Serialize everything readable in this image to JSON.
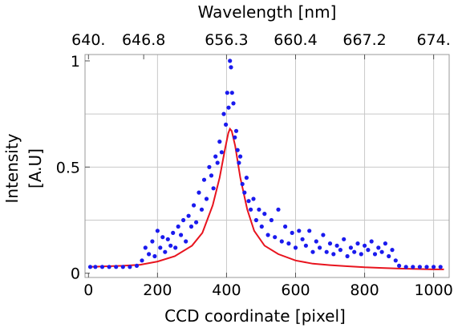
{
  "chart_data": {
    "type": "scatter",
    "xlabel": "CCD coordinate [pixel]",
    "ylabel_lines": [
      "Intensity",
      "[A.U]"
    ],
    "top_axis_title": "Wavelength [nm]",
    "xlim": [
      -10,
      1045
    ],
    "ylim": [
      -0.02,
      1.03
    ],
    "x_ticks": [
      0,
      200,
      400,
      600,
      800,
      1000
    ],
    "x_tick_labels": [
      "0",
      "200",
      "400",
      "600",
      "800",
      "1000"
    ],
    "y_ticks": [
      0,
      0.5,
      1
    ],
    "y_tick_labels": [
      "0",
      "0.5",
      "1"
    ],
    "top_ticks_x": [
      0,
      160,
      400,
      600,
      800,
      1000
    ],
    "top_tick_labels": [
      "640.",
      "646.8",
      "656.3",
      "660.4",
      "667.2",
      "674."
    ],
    "grid": true,
    "colors": {
      "points": "#1a1aee",
      "fit": "#e8141e",
      "grid": "#c8c8c8",
      "frame": "#9a9a9a"
    },
    "series": [
      {
        "kind": "points",
        "x": [
          5,
          20,
          40,
          60,
          80,
          100,
          120,
          140,
          155,
          165,
          175,
          185,
          192,
          200,
          208,
          215,
          222,
          230,
          238,
          245,
          252,
          260,
          268,
          275,
          282,
          290,
          298,
          305,
          312,
          320,
          328,
          335,
          342,
          350,
          356,
          362,
          368,
          374,
          380,
          386,
          392,
          398,
          402,
          406,
          410,
          413,
          416,
          420,
          424,
          428,
          432,
          436,
          440,
          446,
          452,
          458,
          464,
          470,
          478,
          486,
          494,
          502,
          510,
          520,
          530,
          540,
          550,
          560,
          570,
          580,
          590,
          600,
          610,
          620,
          630,
          640,
          650,
          660,
          670,
          680,
          690,
          700,
          710,
          720,
          730,
          740,
          750,
          760,
          770,
          780,
          790,
          800,
          810,
          820,
          830,
          840,
          850,
          860,
          870,
          880,
          890,
          900,
          920,
          940,
          960,
          980,
          1000,
          1020
        ],
        "y": [
          0.03,
          0.03,
          0.03,
          0.03,
          0.03,
          0.03,
          0.03,
          0.035,
          0.06,
          0.12,
          0.09,
          0.15,
          0.08,
          0.2,
          0.12,
          0.17,
          0.1,
          0.16,
          0.13,
          0.19,
          0.12,
          0.22,
          0.18,
          0.25,
          0.15,
          0.27,
          0.22,
          0.32,
          0.24,
          0.38,
          0.3,
          0.44,
          0.35,
          0.5,
          0.46,
          0.4,
          0.55,
          0.52,
          0.62,
          0.57,
          0.75,
          0.7,
          0.85,
          0.78,
          1.0,
          0.97,
          0.85,
          0.8,
          0.64,
          0.67,
          0.58,
          0.52,
          0.55,
          0.42,
          0.38,
          0.45,
          0.34,
          0.3,
          0.35,
          0.25,
          0.3,
          0.22,
          0.28,
          0.18,
          0.25,
          0.17,
          0.3,
          0.15,
          0.22,
          0.14,
          0.19,
          0.12,
          0.2,
          0.16,
          0.13,
          0.2,
          0.1,
          0.15,
          0.12,
          0.18,
          0.1,
          0.14,
          0.09,
          0.13,
          0.11,
          0.16,
          0.08,
          0.12,
          0.1,
          0.14,
          0.09,
          0.13,
          0.11,
          0.15,
          0.09,
          0.12,
          0.1,
          0.14,
          0.08,
          0.11,
          0.06,
          0.035,
          0.03,
          0.03,
          0.03,
          0.03,
          0.03,
          0.03
        ]
      },
      {
        "kind": "fit",
        "x": [
          0,
          100,
          150,
          200,
          250,
          300,
          330,
          360,
          380,
          395,
          405,
          410,
          415,
          425,
          440,
          460,
          480,
          510,
          550,
          600,
          650,
          700,
          750,
          800,
          850,
          900,
          950,
          1000,
          1030
        ],
        "y": [
          0.03,
          0.035,
          0.04,
          0.055,
          0.08,
          0.13,
          0.19,
          0.32,
          0.45,
          0.58,
          0.66,
          0.68,
          0.67,
          0.6,
          0.45,
          0.3,
          0.2,
          0.13,
          0.09,
          0.06,
          0.045,
          0.038,
          0.033,
          0.028,
          0.025,
          0.022,
          0.02,
          0.018,
          0.018
        ]
      }
    ]
  }
}
